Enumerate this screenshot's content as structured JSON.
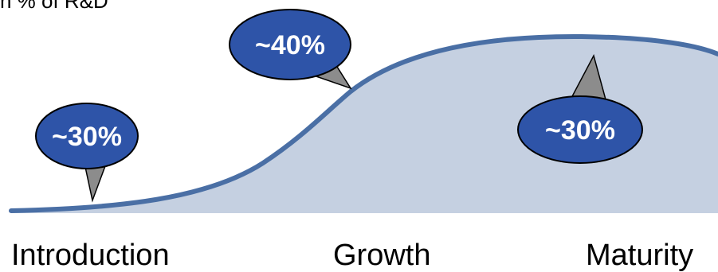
{
  "header": {
    "text": "n % of R&D"
  },
  "stages": [
    {
      "label": "Introduction",
      "share": "~30%"
    },
    {
      "label": "Growth",
      "share": "~40%"
    },
    {
      "label": "Maturity",
      "share": "~30%"
    }
  ],
  "colors": {
    "curve": "#4a6fa5",
    "area_fill": "#c5d0e1",
    "bubble_fill": "#2e54a8",
    "bubble_outline": "#000000",
    "pointer_fill": "#8c8c8c",
    "text_on_bubble": "#ffffff"
  }
}
